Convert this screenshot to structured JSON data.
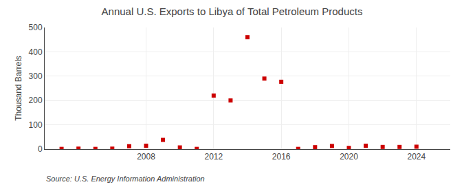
{
  "chart_data": {
    "type": "scatter",
    "title": "Annual U.S. Exports to Libya of Total Petroleum Products",
    "ylabel": "Thousand Barrels",
    "annotations": [
      "Source: U.S. Energy Information Administration"
    ],
    "x": [
      2003,
      2004,
      2005,
      2006,
      2007,
      2008,
      2009,
      2010,
      2011,
      2012,
      2013,
      2014,
      2015,
      2016,
      2017,
      2018,
      2019,
      2020,
      2021,
      2022,
      2023,
      2024
    ],
    "values": [
      1,
      2,
      1,
      2,
      12,
      14,
      38,
      7,
      1,
      220,
      200,
      460,
      290,
      277,
      1,
      8,
      13,
      5,
      14,
      9,
      9,
      10
    ],
    "color": "#cc0000",
    "marker": "square",
    "xlim": [
      2002,
      2026
    ],
    "xticks": [
      2008,
      2012,
      2016,
      2020,
      2024
    ],
    "ylim": [
      0,
      500
    ],
    "yticks": [
      0,
      100,
      200,
      300,
      400,
      500
    ],
    "grid": true
  }
}
